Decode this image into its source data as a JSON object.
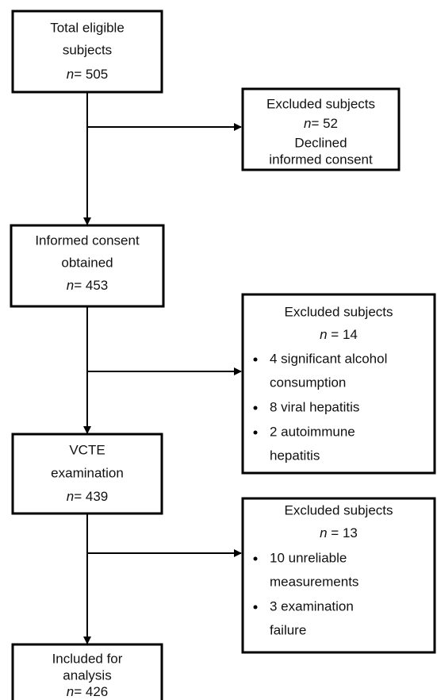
{
  "variable": "n",
  "nodes": [
    {
      "lines": [
        "Total eligible",
        "subjects"
      ],
      "count": "= 505"
    },
    {
      "lines": [
        "Excluded subjects"
      ],
      "count": "= 52",
      "after": [
        "Declined",
        "informed consent"
      ]
    },
    {
      "lines": [
        "Informed consent",
        "obtained"
      ],
      "count": "= 453"
    },
    {
      "lines": [
        "Excluded subjects"
      ],
      "count": " = 14",
      "items": [
        [
          "4 significant alcohol",
          "consumption"
        ],
        [
          "8 viral hepatitis"
        ],
        [
          "2 autoimmune",
          "hepatitis"
        ]
      ]
    },
    {
      "lines": [
        "VCTE",
        "examination"
      ],
      "count": "= 439"
    },
    {
      "lines": [
        "Excluded subjects"
      ],
      "count": " = 13",
      "items": [
        [
          "10 unreliable",
          "measurements"
        ],
        [
          "3 examination",
          "failure"
        ]
      ]
    },
    {
      "lines": [
        "Included for",
        "analysis"
      ],
      "count": "= 426"
    }
  ]
}
